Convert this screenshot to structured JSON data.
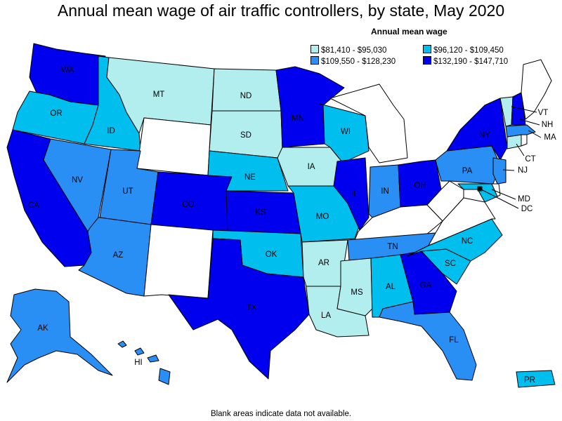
{
  "title": "Annual mean wage of air traffic controllers, by state, May 2020",
  "legend": {
    "title": "Annual mean wage",
    "items": [
      {
        "label": "$81,410 - $95,030",
        "color": "#b3eeee"
      },
      {
        "label": "$96,120 - $109,450",
        "color": "#00bfef"
      },
      {
        "label": "$109,550 - $128,230",
        "color": "#2a8ff5"
      },
      {
        "label": "$132,190 - $147,710",
        "color": "#0000ee"
      }
    ]
  },
  "colors": {
    "c1": "#b3eeee",
    "c2": "#00bfef",
    "c3": "#2a8ff5",
    "c4": "#0000ee",
    "na": "#ffffff"
  },
  "states": {
    "WA": "c4",
    "OR": "c2",
    "CA": "c4",
    "ID": "c2",
    "NV": "c3",
    "MT": "c1",
    "WY": "na",
    "UT": "c3",
    "AZ": "c3",
    "CO": "c4",
    "NM": "na",
    "ND": "c1",
    "SD": "c1",
    "NE": "c2",
    "KS": "c4",
    "OK": "c2",
    "TX": "c4",
    "MN": "c4",
    "IA": "c1",
    "MO": "c2",
    "AR": "c1",
    "LA": "c1",
    "WI": "c2",
    "IL": "c4",
    "MS": "c1",
    "MI": "na",
    "IN": "c3",
    "OH": "c4",
    "KY": "na",
    "TN": "c3",
    "AL": "c2",
    "GA": "c4",
    "FL": "c3",
    "SC": "c2",
    "NC": "c2",
    "VA": "na",
    "WV": "na",
    "PA": "c3",
    "NY": "c4",
    "ME": "na",
    "VT": "c1",
    "NH": "c4",
    "MA": "c3",
    "CT": "c1",
    "RI": "na",
    "NJ": "c3",
    "DE": "na",
    "MD": "c2",
    "DC": "na",
    "AK": "c3",
    "HI": "c3",
    "PR": "c2"
  },
  "labels": {
    "WA": "WA",
    "OR": "OR",
    "CA": "CA",
    "ID": "ID",
    "NV": "NV",
    "MT": "MT",
    "UT": "UT",
    "AZ": "AZ",
    "CO": "CO",
    "ND": "ND",
    "SD": "SD",
    "NE": "NE",
    "KS": "KS",
    "OK": "OK",
    "TX": "TX",
    "MN": "MN",
    "IA": "IA",
    "MO": "MO",
    "AR": "AR",
    "LA": "LA",
    "WI": "WI",
    "IL": "IL",
    "MS": "MS",
    "IN": "IN",
    "OH": "OH",
    "TN": "TN",
    "AL": "AL",
    "GA": "GA",
    "FL": "FL",
    "SC": "SC",
    "NC": "NC",
    "PA": "PA",
    "NY": "NY",
    "VT": "VT",
    "NH": "NH",
    "MA": "MA",
    "CT": "CT",
    "NJ": "NJ",
    "MD": "MD",
    "DC": "DC",
    "AK": "AK",
    "HI": "HI",
    "PR": "PR"
  },
  "footnote": "Blank areas indicate data not available."
}
